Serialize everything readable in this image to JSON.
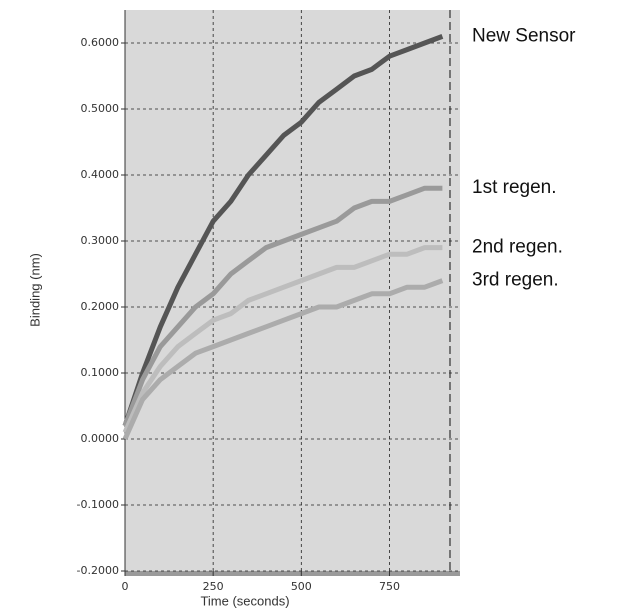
{
  "chart_data": {
    "type": "line",
    "xlabel": "Time (seconds)",
    "ylabel": "Binding (nm)",
    "x": [
      0,
      50,
      100,
      150,
      200,
      250,
      300,
      350,
      400,
      450,
      500,
      550,
      600,
      650,
      700,
      750,
      800,
      850,
      900
    ],
    "series": [
      {
        "name": "New Sensor",
        "color": "#555555",
        "values": [
          0.02,
          0.1,
          0.17,
          0.23,
          0.28,
          0.33,
          0.36,
          0.4,
          0.43,
          0.46,
          0.48,
          0.51,
          0.53,
          0.55,
          0.56,
          0.58,
          0.59,
          0.6,
          0.61
        ]
      },
      {
        "name": "1st regen.",
        "color": "#9a9a9a",
        "values": [
          0.02,
          0.09,
          0.14,
          0.17,
          0.2,
          0.22,
          0.25,
          0.27,
          0.29,
          0.3,
          0.31,
          0.32,
          0.33,
          0.35,
          0.36,
          0.36,
          0.37,
          0.38,
          0.38
        ]
      },
      {
        "name": "2nd regen.",
        "color": "#bdbdbd",
        "values": [
          0.01,
          0.07,
          0.11,
          0.14,
          0.16,
          0.18,
          0.19,
          0.21,
          0.22,
          0.23,
          0.24,
          0.25,
          0.26,
          0.26,
          0.27,
          0.28,
          0.28,
          0.29,
          0.29
        ]
      },
      {
        "name": "3rd regen.",
        "color": "#acacac",
        "values": [
          0.0,
          0.06,
          0.09,
          0.11,
          0.13,
          0.14,
          0.15,
          0.16,
          0.17,
          0.18,
          0.19,
          0.2,
          0.2,
          0.21,
          0.22,
          0.22,
          0.23,
          0.23,
          0.24
        ]
      }
    ],
    "xlim": [
      0,
      950
    ],
    "xticks": [
      0,
      250,
      500,
      750
    ],
    "ylim": [
      -0.2,
      0.65
    ],
    "yticks": [
      {
        "value": -0.2,
        "label": "-0.2000"
      },
      {
        "value": -0.1,
        "label": "-0.1000"
      },
      {
        "value": 0,
        "label": "0.0000"
      },
      {
        "value": 0.1,
        "label": "0.1000"
      },
      {
        "value": 0.2,
        "label": "0.2000"
      },
      {
        "value": 0.3,
        "label": "0.3000"
      },
      {
        "value": 0.4,
        "label": "0.4000"
      },
      {
        "value": 0.5,
        "label": "0.5000"
      },
      {
        "value": 0.6,
        "label": "0.6000"
      }
    ],
    "grid": true
  }
}
